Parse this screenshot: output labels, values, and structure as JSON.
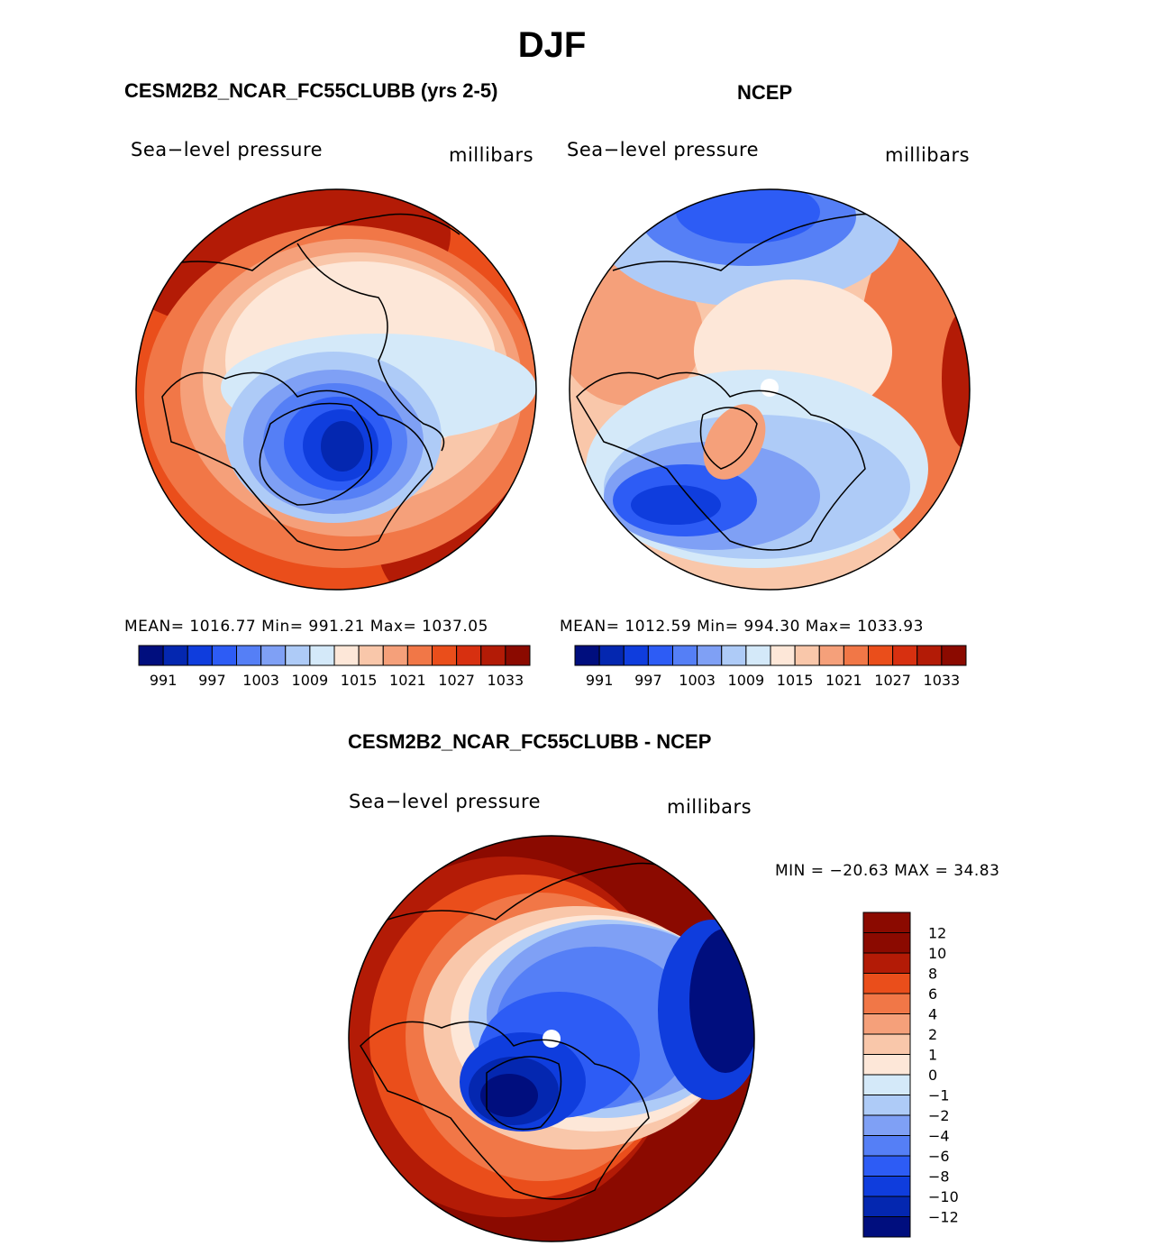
{
  "figure": {
    "season": "DJF",
    "colors": {
      "scale": [
        "#000e7e",
        "#0427b0",
        "#0f3ddd",
        "#2d5cf5",
        "#557ff6",
        "#7fa0f5",
        "#aecbf7",
        "#d4e9f9",
        "#fde7d8",
        "#f9c7aa",
        "#f5a07a",
        "#f17747",
        "#ea4e1b",
        "#d73010",
        "#b31b06",
        "#8b0a00"
      ],
      "diff_scale": [
        "#000e7e",
        "#0427b0",
        "#0f3ddd",
        "#2d5cf5",
        "#557ff6",
        "#7fa0f5",
        "#aecbf7",
        "#d4e9f9",
        "#fde7d8",
        "#f9c7aa",
        "#f5a07a",
        "#f17747",
        "#ea4e1b",
        "#b31b06",
        "#8b0a00"
      ]
    }
  },
  "panels": {
    "model": {
      "title": "CESM2B2_NCAR_FC55CLUBB (yrs 2-5)",
      "variable": "Sea−level pressure",
      "units": "millibars",
      "stats": "MEAN=  1016.77   Min=  991.21   Max=  1037.05"
    },
    "obs": {
      "title": "NCEP",
      "variable": "Sea−level pressure",
      "units": "millibars",
      "stats": "MEAN=  1012.59   Min=  994.30   Max=  1033.93"
    },
    "diff": {
      "title": "CESM2B2_NCAR_FC55CLUBB - NCEP",
      "variable": "Sea−level pressure",
      "units": "millibars",
      "stats": "MIN  =  −20.63  MAX  =    34.83"
    }
  },
  "chart_data": [
    {
      "type": "heatmap",
      "projection": "north polar stereographic",
      "title": "CESM2B2_NCAR_FC55CLUBB (yrs 2-5)",
      "variable": "Sea-level pressure",
      "units": "millibars",
      "mean": 1016.77,
      "min": 991.21,
      "max": 1037.05,
      "colorbar_levels": [
        991,
        994,
        997,
        1000,
        1003,
        1006,
        1009,
        1012,
        1015,
        1018,
        1021,
        1024,
        1027,
        1030,
        1033
      ],
      "colorbar_tick_labels": [
        "991",
        "997",
        "1003",
        "1009",
        "1015",
        "1021",
        "1027",
        "1033"
      ]
    },
    {
      "type": "heatmap",
      "projection": "north polar stereographic",
      "title": "NCEP",
      "variable": "Sea-level pressure",
      "units": "millibars",
      "mean": 1012.59,
      "min": 994.3,
      "max": 1033.93,
      "colorbar_levels": [
        991,
        994,
        997,
        1000,
        1003,
        1006,
        1009,
        1012,
        1015,
        1018,
        1021,
        1024,
        1027,
        1030,
        1033
      ],
      "colorbar_tick_labels": [
        "991",
        "997",
        "1003",
        "1009",
        "1015",
        "1021",
        "1027",
        "1033"
      ]
    },
    {
      "type": "heatmap",
      "projection": "north polar stereographic",
      "title": "CESM2B2_NCAR_FC55CLUBB - NCEP",
      "variable": "Sea-level pressure",
      "units": "millibars",
      "min": -20.63,
      "max": 34.83,
      "colorbar_levels": [
        12,
        10,
        8,
        6,
        4,
        2,
        1,
        0,
        -1,
        -2,
        -4,
        -6,
        -8,
        -10,
        -12
      ],
      "colorbar_tick_labels": [
        "12",
        "10",
        "8",
        "6",
        "4",
        "2",
        "1",
        "0",
        "−1",
        "−2",
        "−4",
        "−6",
        "−8",
        "−10",
        "−12"
      ]
    }
  ]
}
